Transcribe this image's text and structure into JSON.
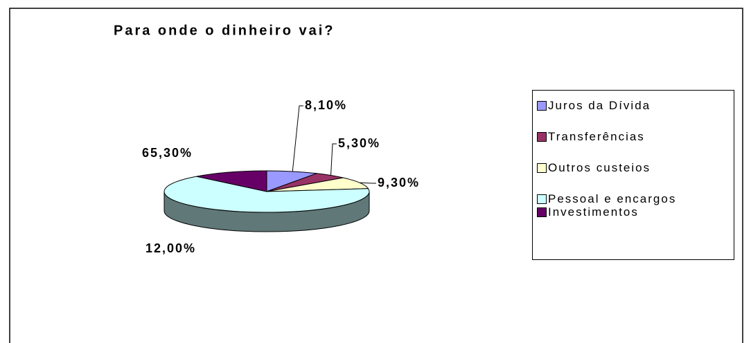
{
  "chart_data": {
    "type": "pie3d",
    "title": "Para onde o dinheiro vai?",
    "categories": [
      "Juros da Dívida",
      "Transferências",
      "Outros custeios",
      "Pessoal e encargos",
      "Investimentos"
    ],
    "values": [
      8.1,
      5.3,
      9.3,
      65.3,
      12.0
    ],
    "value_labels": [
      "8,10%",
      "5,30%",
      "9,30%",
      "65,30%",
      "12,00%"
    ],
    "colors": [
      "#9999ff",
      "#993366",
      "#ffffcc",
      "#ccffff",
      "#660066"
    ],
    "legend": "right"
  }
}
